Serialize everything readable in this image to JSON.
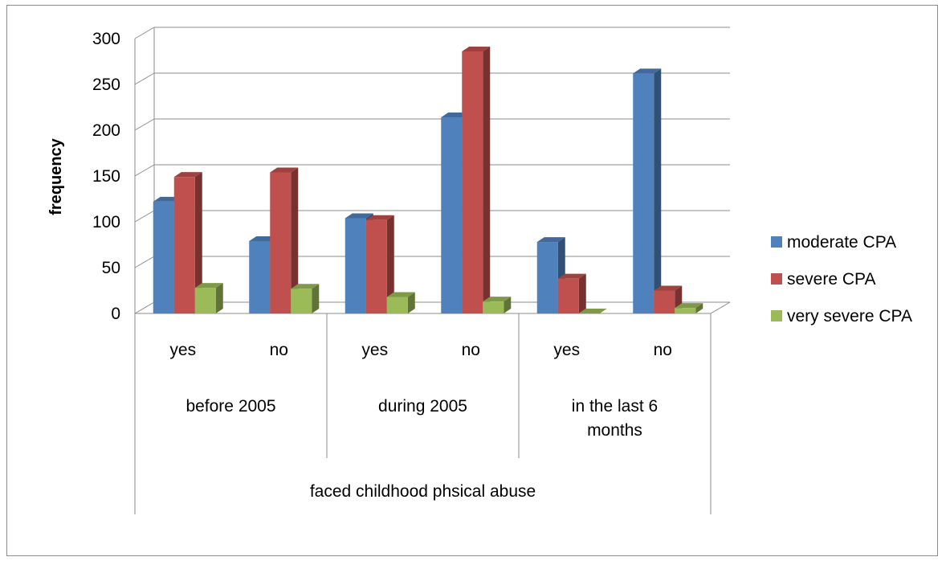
{
  "chart_data": {
    "type": "bar",
    "title": "",
    "xlabel": "",
    "ylabel": "frequency",
    "ylim": [
      0,
      300
    ],
    "y_ticks": [
      "0",
      "50",
      "100",
      "150",
      "200",
      "250",
      "300"
    ],
    "grid": true,
    "legend_position": "right",
    "categories": [
      {
        "group": "before 2005",
        "sub": "yes"
      },
      {
        "group": "before 2005",
        "sub": "no"
      },
      {
        "group": "during 2005",
        "sub": "yes"
      },
      {
        "group": "during 2005",
        "sub": "no"
      },
      {
        "group": "in the last 6 months",
        "sub": "yes"
      },
      {
        "group": "in the last 6 months",
        "sub": "no"
      }
    ],
    "groups": [
      "before 2005",
      "during 2005",
      "in the last 6 months"
    ],
    "top_group": "faced childhood phsical abuse",
    "series": [
      {
        "name": "moderate CPA",
        "color": "#4f81bd",
        "values": [
          122,
          79,
          104,
          214,
          78,
          262
        ]
      },
      {
        "name": "severe CPA",
        "color": "#c0504d",
        "values": [
          149,
          154,
          102,
          286,
          38,
          25
        ]
      },
      {
        "name": "very severe CPA",
        "color": "#9bbb59",
        "values": [
          28,
          27,
          18,
          13,
          0,
          6
        ]
      }
    ]
  }
}
